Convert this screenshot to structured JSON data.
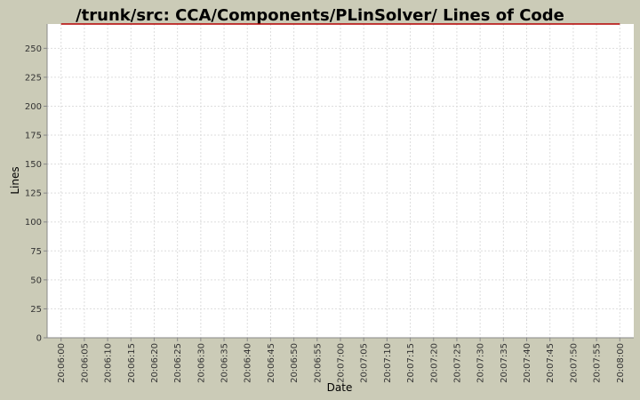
{
  "chart_data": {
    "type": "line",
    "title": "/trunk/src: CCA/Components/PLinSolver/ Lines of Code",
    "x_label": "Date",
    "y_label": "Lines",
    "x": [
      "20:06:00",
      "20:08:00"
    ],
    "series": [
      {
        "name": "Lines",
        "color": "#b40000",
        "values": [
          271,
          271
        ]
      }
    ],
    "xlim": [
      "20:05:57",
      "20:08:03"
    ],
    "xticks": [
      "20:06:00",
      "20:06:05",
      "20:06:10",
      "20:06:15",
      "20:06:20",
      "20:06:25",
      "20:06:30",
      "20:06:35",
      "20:06:40",
      "20:06:45",
      "20:06:50",
      "20:06:55",
      "20:07:00",
      "20:07:05",
      "20:07:10",
      "20:07:15",
      "20:07:20",
      "20:07:25",
      "20:07:30",
      "20:07:35",
      "20:07:40",
      "20:07:45",
      "20:07:50",
      "20:07:55",
      "20:08:00"
    ],
    "ylim": [
      0,
      271
    ],
    "yticks": [
      0,
      25,
      50,
      75,
      100,
      125,
      150,
      175,
      200,
      225,
      250
    ],
    "grid": true
  }
}
